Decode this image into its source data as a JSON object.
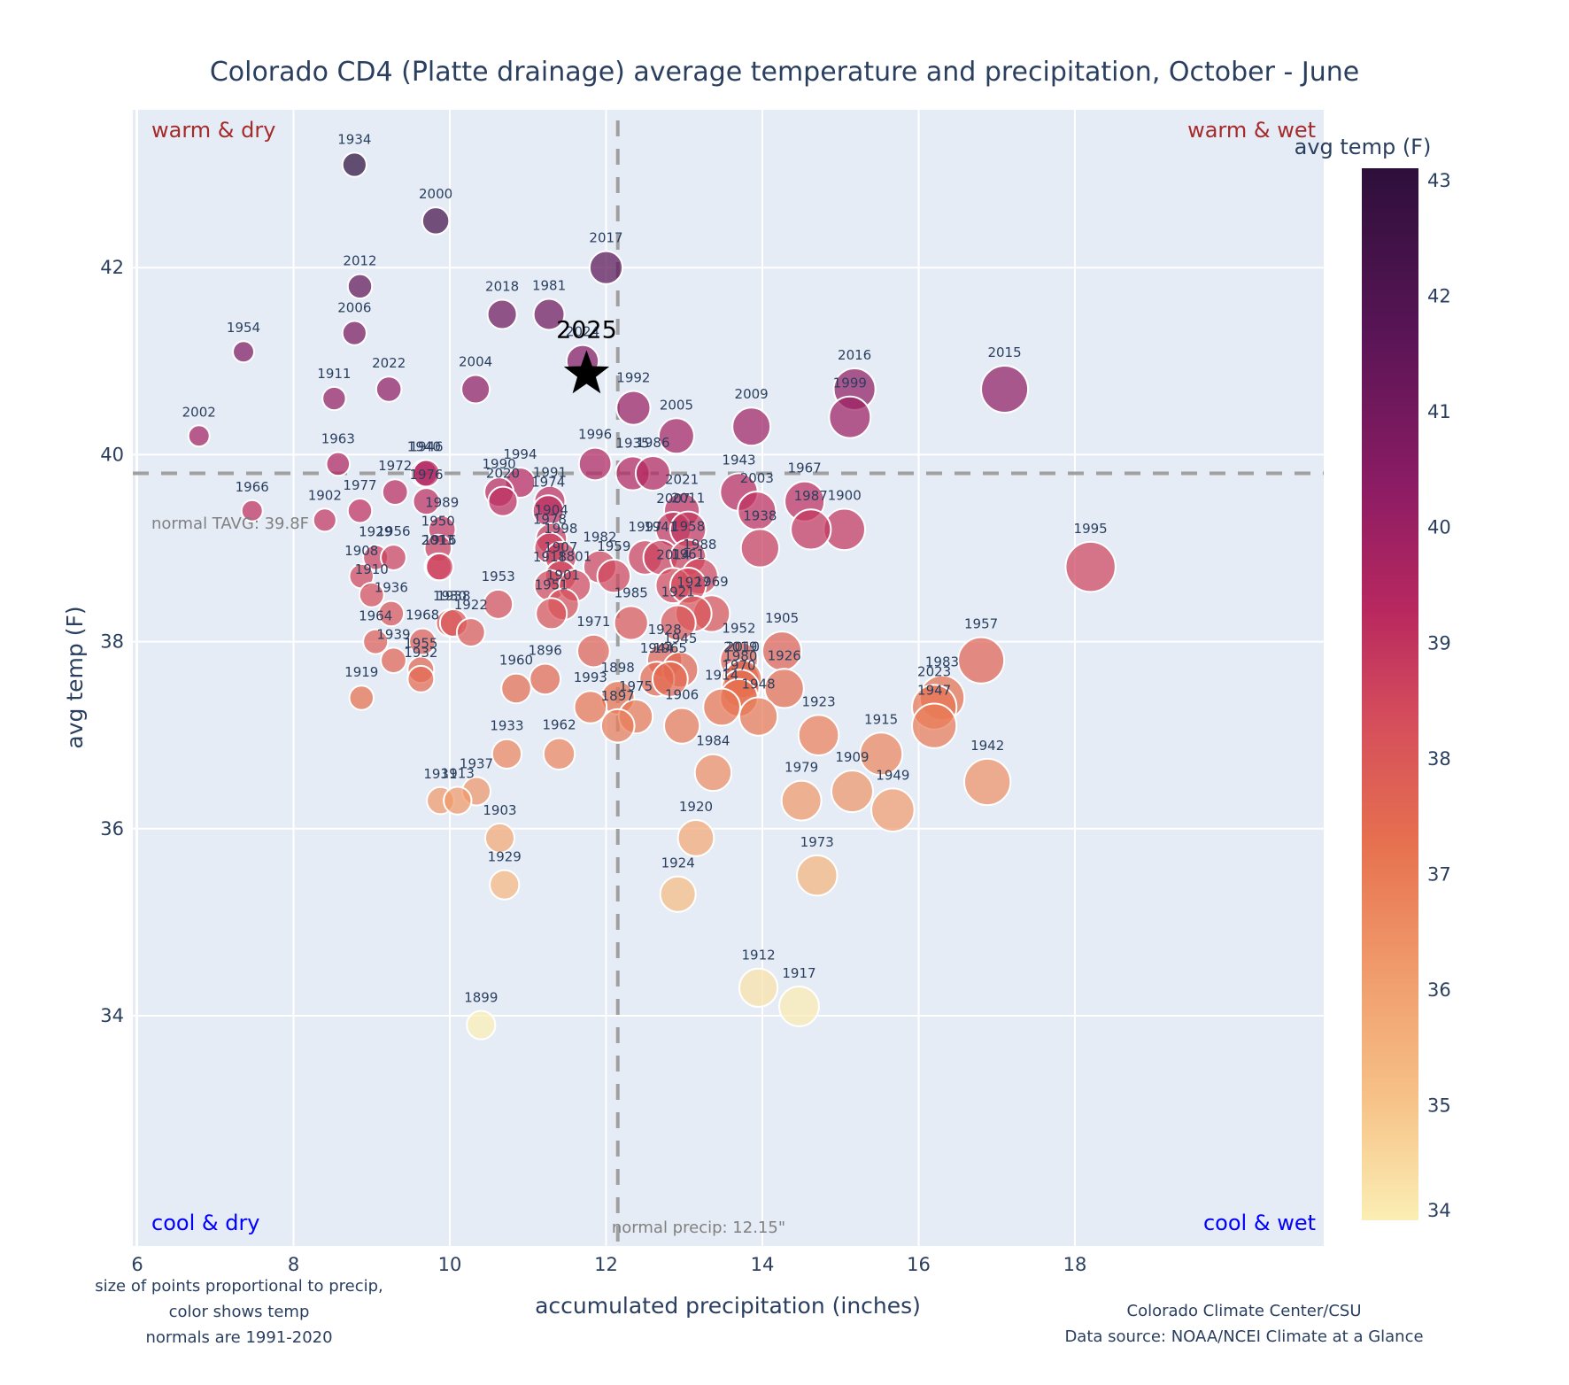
{
  "chart_data": {
    "type": "scatter",
    "title": "Colorado CD4 (Platte drainage) average temperature and precipitation, October - June",
    "xlabel": "accumulated precipitation (inches)",
    "ylabel": "avg temp (F)",
    "xlim": [
      5.95,
      19.25
    ],
    "ylim": [
      33.2,
      43.8
    ],
    "xticks": [
      6,
      8,
      10,
      12,
      14,
      16,
      18
    ],
    "yticks": [
      34,
      36,
      38,
      40,
      42
    ],
    "grid": true,
    "colorbar": {
      "title": "avg temp (F)",
      "range": [
        34,
        43.1
      ],
      "ticks": [
        34,
        35,
        36,
        37,
        38,
        39,
        40,
        41,
        42,
        43
      ],
      "colorscale": [
        "#fbeeb4",
        "#f6c086",
        "#f09a6b",
        "#e6704f",
        "#d44c5c",
        "#b8285f",
        "#8b1c64",
        "#5a1556",
        "#2d0f3b"
      ]
    },
    "normals": {
      "temp": 39.8,
      "temp_label": "normal TAVG: 39.8F",
      "precip": 12.15,
      "precip_label": "normal precip: 12.15\""
    },
    "quadrant_labels": {
      "top_left": "warm & dry",
      "top_right": "warm & wet",
      "bottom_left": "cool & dry",
      "bottom_right": "cool & wet"
    },
    "highlight": {
      "label": "2025",
      "x": 11.75,
      "y": 40.9,
      "marker": "star"
    },
    "notes": {
      "left": [
        "size of points proportional to precip,",
        "color shows temp",
        "normals are 1991-2020"
      ],
      "right": [
        "Colorado Climate Center/CSU",
        "Data source: NOAA/NCEI Climate at a Glance"
      ]
    },
    "points": [
      {
        "year": "1934",
        "x": 8.78,
        "y": 43.1
      },
      {
        "year": "2000",
        "x": 9.82,
        "y": 42.5
      },
      {
        "year": "2017",
        "x": 12.0,
        "y": 42.0
      },
      {
        "year": "2012",
        "x": 8.85,
        "y": 41.8
      },
      {
        "year": "2018",
        "x": 10.67,
        "y": 41.5
      },
      {
        "year": "1981",
        "x": 11.27,
        "y": 41.5
      },
      {
        "year": "2006",
        "x": 8.78,
        "y": 41.3
      },
      {
        "year": "1954",
        "x": 7.36,
        "y": 41.1
      },
      {
        "year": "2024",
        "x": 11.7,
        "y": 41.0
      },
      {
        "year": "2016",
        "x": 15.18,
        "y": 40.7
      },
      {
        "year": "2015",
        "x": 17.1,
        "y": 40.7
      },
      {
        "year": "2022",
        "x": 9.22,
        "y": 40.7
      },
      {
        "year": "2004",
        "x": 10.33,
        "y": 40.7
      },
      {
        "year": "1911",
        "x": 8.52,
        "y": 40.6
      },
      {
        "year": "1992",
        "x": 12.35,
        "y": 40.5
      },
      {
        "year": "1999",
        "x": 15.12,
        "y": 40.4
      },
      {
        "year": "2009",
        "x": 13.86,
        "y": 40.3
      },
      {
        "year": "2002",
        "x": 6.79,
        "y": 40.2
      },
      {
        "year": "2005",
        "x": 12.9,
        "y": 40.2
      },
      {
        "year": "1996",
        "x": 11.86,
        "y": 39.9
      },
      {
        "year": "1963",
        "x": 8.57,
        "y": 39.9
      },
      {
        "year": "1940",
        "x": 9.67,
        "y": 39.8
      },
      {
        "year": "1946",
        "x": 9.7,
        "y": 39.8
      },
      {
        "year": "1935",
        "x": 12.34,
        "y": 39.8
      },
      {
        "year": "1986",
        "x": 12.6,
        "y": 39.8
      },
      {
        "year": "1994",
        "x": 10.9,
        "y": 39.7
      },
      {
        "year": "1990",
        "x": 10.63,
        "y": 39.6
      },
      {
        "year": "2020",
        "x": 10.68,
        "y": 39.5
      },
      {
        "year": "1943",
        "x": 13.7,
        "y": 39.6
      },
      {
        "year": "1972",
        "x": 9.3,
        "y": 39.6
      },
      {
        "year": "1976",
        "x": 9.7,
        "y": 39.5
      },
      {
        "year": "1991",
        "x": 11.28,
        "y": 39.5
      },
      {
        "year": "1974",
        "x": 11.26,
        "y": 39.4
      },
      {
        "year": "2003",
        "x": 13.93,
        "y": 39.4
      },
      {
        "year": "1967",
        "x": 14.54,
        "y": 39.5
      },
      {
        "year": "1966",
        "x": 7.47,
        "y": 39.4
      },
      {
        "year": "2021",
        "x": 12.97,
        "y": 39.4
      },
      {
        "year": "1977",
        "x": 8.85,
        "y": 39.4
      },
      {
        "year": "1902",
        "x": 8.4,
        "y": 39.3
      },
      {
        "year": "2007",
        "x": 12.86,
        "y": 39.2
      },
      {
        "year": "2011",
        "x": 13.05,
        "y": 39.2
      },
      {
        "year": "1900",
        "x": 15.05,
        "y": 39.2
      },
      {
        "year": "1987",
        "x": 14.62,
        "y": 39.2
      },
      {
        "year": "1989",
        "x": 9.9,
        "y": 39.2
      },
      {
        "year": "1904",
        "x": 11.3,
        "y": 39.1
      },
      {
        "year": "1978",
        "x": 11.28,
        "y": 39.0
      },
      {
        "year": "1938",
        "x": 13.97,
        "y": 39.0
      },
      {
        "year": "1950",
        "x": 9.85,
        "y": 39.0
      },
      {
        "year": "1997",
        "x": 12.5,
        "y": 38.9
      },
      {
        "year": "1941",
        "x": 12.7,
        "y": 38.9
      },
      {
        "year": "1958",
        "x": 13.05,
        "y": 38.9
      },
      {
        "year": "1998",
        "x": 11.42,
        "y": 38.9
      },
      {
        "year": "1929",
        "x": 9.05,
        "y": 38.9
      },
      {
        "year": "1956",
        "x": 9.28,
        "y": 38.9
      },
      {
        "year": "2013",
        "x": 9.85,
        "y": 38.8
      },
      {
        "year": "1982",
        "x": 11.92,
        "y": 38.8
      },
      {
        "year": "1995",
        "x": 18.2,
        "y": 38.8
      },
      {
        "year": "1988",
        "x": 13.2,
        "y": 38.7
      },
      {
        "year": "1959",
        "x": 12.1,
        "y": 38.7
      },
      {
        "year": "1907",
        "x": 11.42,
        "y": 38.7
      },
      {
        "year": "1918",
        "x": 11.28,
        "y": 38.6
      },
      {
        "year": "1801",
        "x": 11.6,
        "y": 38.6
      },
      {
        "year": "2014",
        "x": 12.86,
        "y": 38.6
      },
      {
        "year": "1961",
        "x": 13.05,
        "y": 38.6
      },
      {
        "year": "1916",
        "x": 9.87,
        "y": 38.8
      },
      {
        "year": "1908",
        "x": 8.87,
        "y": 38.7
      },
      {
        "year": "1910",
        "x": 9.0,
        "y": 38.5
      },
      {
        "year": "1969",
        "x": 13.35,
        "y": 38.3
      },
      {
        "year": "1927",
        "x": 13.12,
        "y": 38.3
      },
      {
        "year": "1901",
        "x": 11.45,
        "y": 38.4
      },
      {
        "year": "1951",
        "x": 11.3,
        "y": 38.3
      },
      {
        "year": "1953",
        "x": 10.62,
        "y": 38.4
      },
      {
        "year": "1936",
        "x": 9.25,
        "y": 38.3
      },
      {
        "year": "1985",
        "x": 12.32,
        "y": 38.2
      },
      {
        "year": "1921",
        "x": 12.92,
        "y": 38.2
      },
      {
        "year": "1930",
        "x": 10.0,
        "y": 38.2
      },
      {
        "year": "1938b",
        "x": 10.05,
        "y": 38.2
      },
      {
        "year": "1922",
        "x": 10.27,
        "y": 38.1
      },
      {
        "year": "1964",
        "x": 9.05,
        "y": 38.0
      },
      {
        "year": "1968",
        "x": 9.65,
        "y": 38.0
      },
      {
        "year": "1905",
        "x": 14.25,
        "y": 37.9
      },
      {
        "year": "1971",
        "x": 11.84,
        "y": 37.9
      },
      {
        "year": "1928",
        "x": 12.75,
        "y": 37.8
      },
      {
        "year": "1945",
        "x": 12.95,
        "y": 37.7
      },
      {
        "year": "1952",
        "x": 13.7,
        "y": 37.8
      },
      {
        "year": "1957",
        "x": 16.8,
        "y": 37.8
      },
      {
        "year": "1939",
        "x": 9.28,
        "y": 37.8
      },
      {
        "year": "1955",
        "x": 9.63,
        "y": 37.7
      },
      {
        "year": "1932",
        "x": 9.63,
        "y": 37.6
      },
      {
        "year": "2019",
        "x": 13.72,
        "y": 37.6
      },
      {
        "year": "2010",
        "x": 13.75,
        "y": 37.6
      },
      {
        "year": "1980",
        "x": 13.72,
        "y": 37.5
      },
      {
        "year": "1926",
        "x": 14.28,
        "y": 37.5
      },
      {
        "year": "1944",
        "x": 12.65,
        "y": 37.6
      },
      {
        "year": "1965",
        "x": 12.82,
        "y": 37.6
      },
      {
        "year": "1896",
        "x": 11.22,
        "y": 37.6
      },
      {
        "year": "1960",
        "x": 10.85,
        "y": 37.5
      },
      {
        "year": "1970",
        "x": 13.7,
        "y": 37.4
      },
      {
        "year": "1898",
        "x": 12.15,
        "y": 37.4
      },
      {
        "year": "1914",
        "x": 13.48,
        "y": 37.3
      },
      {
        "year": "1948",
        "x": 13.95,
        "y": 37.2
      },
      {
        "year": "1983",
        "x": 16.3,
        "y": 37.4
      },
      {
        "year": "1919",
        "x": 8.87,
        "y": 37.4
      },
      {
        "year": "2023",
        "x": 16.2,
        "y": 37.3
      },
      {
        "year": "1993",
        "x": 11.8,
        "y": 37.3
      },
      {
        "year": "1975",
        "x": 12.38,
        "y": 37.2
      },
      {
        "year": "1906",
        "x": 12.97,
        "y": 37.1
      },
      {
        "year": "1897",
        "x": 12.15,
        "y": 37.1
      },
      {
        "year": "1947",
        "x": 16.2,
        "y": 37.1
      },
      {
        "year": "1923",
        "x": 14.72,
        "y": 37.0
      },
      {
        "year": "1933",
        "x": 10.73,
        "y": 36.8
      },
      {
        "year": "1962",
        "x": 11.4,
        "y": 36.8
      },
      {
        "year": "1915",
        "x": 15.52,
        "y": 36.8
      },
      {
        "year": "1984",
        "x": 13.37,
        "y": 36.6
      },
      {
        "year": "1942",
        "x": 16.88,
        "y": 36.5
      },
      {
        "year": "1937",
        "x": 10.34,
        "y": 36.4
      },
      {
        "year": "1909",
        "x": 15.15,
        "y": 36.4
      },
      {
        "year": "1979",
        "x": 14.5,
        "y": 36.3
      },
      {
        "year": "1931",
        "x": 9.88,
        "y": 36.3
      },
      {
        "year": "1913",
        "x": 10.1,
        "y": 36.3
      },
      {
        "year": "1949",
        "x": 15.67,
        "y": 36.2
      },
      {
        "year": "1920",
        "x": 13.15,
        "y": 35.9
      },
      {
        "year": "1903",
        "x": 10.64,
        "y": 35.9
      },
      {
        "year": "1973",
        "x": 14.7,
        "y": 35.5
      },
      {
        "year": "1929b",
        "x": 10.7,
        "y": 35.4
      },
      {
        "year": "1924",
        "x": 12.92,
        "y": 35.3
      },
      {
        "year": "1912",
        "x": 13.95,
        "y": 34.3
      },
      {
        "year": "1917",
        "x": 14.47,
        "y": 34.1
      },
      {
        "year": "1899",
        "x": 10.4,
        "y": 33.9
      }
    ]
  }
}
